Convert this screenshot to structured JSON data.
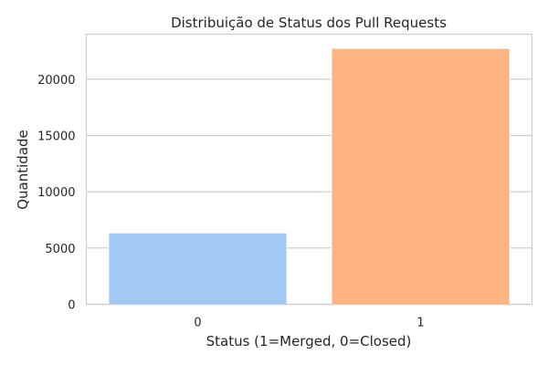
{
  "chart_data": {
    "type": "bar",
    "title": "Distribuição de Status dos Pull Requests",
    "xlabel": "Status (1=Merged, 0=Closed)",
    "ylabel": "Quantidade",
    "categories": [
      "0",
      "1"
    ],
    "values": [
      6350,
      22750
    ],
    "colors": [
      "#a1c9f4",
      "#ffb482"
    ],
    "ylim": [
      0,
      24000
    ],
    "yticks": [
      0,
      5000,
      10000,
      15000,
      20000
    ],
    "grid": true,
    "legend": "none"
  }
}
